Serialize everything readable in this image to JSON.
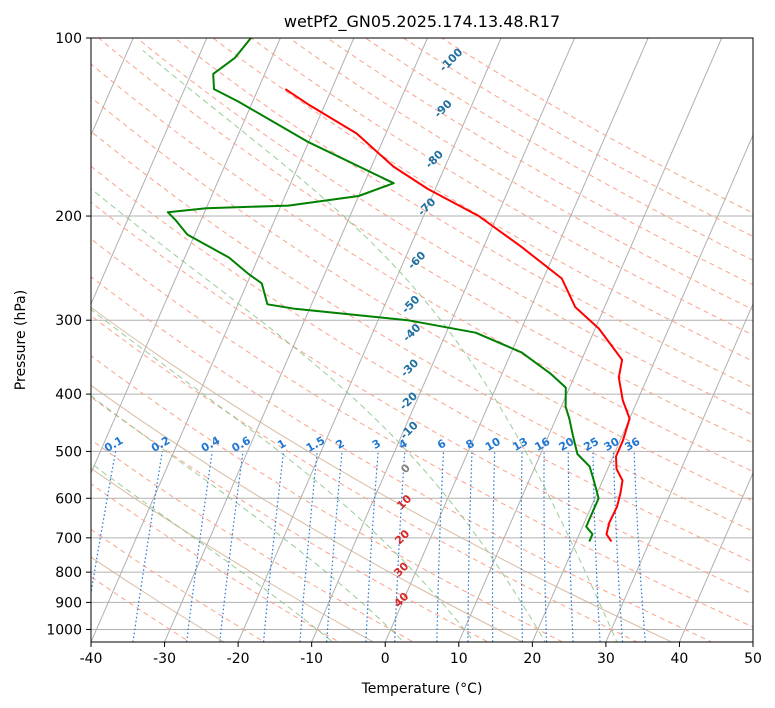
{
  "chart_data": {
    "type": "line",
    "subtype": "skew-t log-p diagram",
    "title": "wetPf2_GN05.2025.174.13.48.R17",
    "xlabel": "Temperature (°C)",
    "ylabel": "Pressure (hPa)",
    "xlim": [
      -40,
      50
    ],
    "ylim": [
      1050,
      100
    ],
    "y_scale": "log",
    "skew_deg_per_decade": 35,
    "grid": true,
    "x_ticks": [
      "-40",
      "-30",
      "-20",
      "-10",
      "0",
      "10",
      "20",
      "30",
      "40",
      "50"
    ],
    "x_tick_values": [
      -40,
      -30,
      -20,
      -10,
      0,
      10,
      20,
      30,
      40,
      50
    ],
    "y_ticks": [
      "100",
      "200",
      "300",
      "400",
      "500",
      "600",
      "700",
      "800",
      "900",
      "1000"
    ],
    "y_tick_values": [
      100,
      200,
      300,
      400,
      500,
      600,
      700,
      800,
      900,
      1000
    ],
    "isotherms": [
      -120,
      -110,
      -100,
      -90,
      -80,
      -70,
      -60,
      -50,
      -40,
      -30,
      -20,
      -10,
      0,
      10,
      20,
      30,
      40,
      50,
      60,
      70,
      80,
      90,
      100,
      110
    ],
    "dry_adiabats_theta_c": [
      -30,
      -20,
      -10,
      0,
      10,
      20,
      30,
      40,
      50,
      60,
      70,
      80,
      90,
      100,
      110,
      120,
      130,
      140,
      150,
      160,
      170,
      180,
      190,
      200
    ],
    "moist_adiabats_tw_c": [
      -10,
      0,
      10,
      20,
      30
    ],
    "mixing_ratios": [
      0.1,
      0.2,
      0.4,
      0.6,
      1,
      1.5,
      2,
      3,
      4,
      6,
      8,
      10,
      13,
      16,
      20,
      25,
      30,
      36
    ],
    "mixing_ratio_labels": [
      "0.1",
      "0.2",
      "0.4",
      "0.6",
      "1",
      "1.5",
      "2",
      "3",
      "4",
      "6",
      "8",
      "10",
      "13",
      "16",
      "20",
      "25",
      "30",
      "36"
    ],
    "mixing_ratio_label_pressure": 500,
    "wet_bulb_labels": [
      {
        "text": "-100",
        "p": 110,
        "t": -100
      },
      {
        "text": "-90",
        "p": 133,
        "t": -90
      },
      {
        "text": "-80",
        "p": 162,
        "t": -80
      },
      {
        "text": "-70",
        "p": 195,
        "t": -70
      },
      {
        "text": "-60",
        "p": 240,
        "t": -60
      },
      {
        "text": "-50",
        "p": 285,
        "t": -50
      },
      {
        "text": "-40",
        "p": 318,
        "t": -40
      },
      {
        "text": "-30",
        "p": 365,
        "t": -30
      },
      {
        "text": "-20",
        "p": 415,
        "t": -20
      },
      {
        "text": "-10",
        "p": 465,
        "t": -10
      },
      {
        "text": "0",
        "p": 540,
        "t": 0
      },
      {
        "text": "10",
        "p": 615,
        "t": 10
      },
      {
        "text": "20",
        "p": 705,
        "t": 20
      },
      {
        "text": "30",
        "p": 800,
        "t": 30
      },
      {
        "text": "40",
        "p": 900,
        "t": 40
      }
    ],
    "colors": {
      "temperature": "#ff0000",
      "dewpoint": "#008000",
      "isotherm": "#b0b0b0",
      "isobar": "#b0b0b0",
      "dry_adiabat": "#f9a38b",
      "moist_adiabat": "#7fbf7f",
      "mixing_ratio": "#1f77d4",
      "theta_arc": "#c9a07a",
      "label_cold": "#1f6fa0",
      "label_zero": "#808080",
      "label_warm": "#d62728"
    },
    "series": [
      {
        "role": "temperature",
        "points": [
          {
            "p": 710,
            "t": 24.8
          },
          {
            "p": 690,
            "t": 23.7
          },
          {
            "p": 660,
            "t": 23.4
          },
          {
            "p": 620,
            "t": 23.5
          },
          {
            "p": 590,
            "t": 23.2
          },
          {
            "p": 560,
            "t": 22.7
          },
          {
            "p": 535,
            "t": 21.2
          },
          {
            "p": 510,
            "t": 20.4
          },
          {
            "p": 480,
            "t": 20.4
          },
          {
            "p": 440,
            "t": 20.0
          },
          {
            "p": 410,
            "t": 18.0
          },
          {
            "p": 375,
            "t": 16.1
          },
          {
            "p": 350,
            "t": 15.5
          },
          {
            "p": 310,
            "t": 10.5
          },
          {
            "p": 285,
            "t": 6.0
          },
          {
            "p": 255,
            "t": 2.5
          },
          {
            "p": 225,
            "t": -5.0
          },
          {
            "p": 200,
            "t": -12.5
          },
          {
            "p": 180,
            "t": -21.0
          },
          {
            "p": 165,
            "t": -27.0
          },
          {
            "p": 145,
            "t": -34.0
          },
          {
            "p": 130,
            "t": -42.0
          },
          {
            "p": 122,
            "t": -46.3
          }
        ]
      },
      {
        "role": "dewpoint",
        "points": [
          {
            "p": 710,
            "t": 21.8
          },
          {
            "p": 690,
            "t": 21.8
          },
          {
            "p": 670,
            "t": 20.5
          },
          {
            "p": 630,
            "t": 20.5
          },
          {
            "p": 600,
            "t": 20.5
          },
          {
            "p": 560,
            "t": 18.8
          },
          {
            "p": 530,
            "t": 17.4
          },
          {
            "p": 505,
            "t": 15.0
          },
          {
            "p": 470,
            "t": 13.3
          },
          {
            "p": 440,
            "t": 11.8
          },
          {
            "p": 420,
            "t": 10.6
          },
          {
            "p": 390,
            "t": 9.5
          },
          {
            "p": 370,
            "t": 6.7
          },
          {
            "p": 340,
            "t": 1.4
          },
          {
            "p": 315,
            "t": -6.0
          },
          {
            "p": 300,
            "t": -16.0
          },
          {
            "p": 287,
            "t": -32.0
          },
          {
            "p": 282,
            "t": -36.0
          },
          {
            "p": 260,
            "t": -38.0
          },
          {
            "p": 250,
            "t": -40.5
          },
          {
            "p": 235,
            "t": -44.0
          },
          {
            "p": 215,
            "t": -51.0
          },
          {
            "p": 203,
            "t": -53.5
          },
          {
            "p": 197,
            "t": -55.0
          },
          {
            "p": 194,
            "t": -50.0
          },
          {
            "p": 192,
            "t": -39.0
          },
          {
            "p": 185,
            "t": -30.0
          },
          {
            "p": 176,
            "t": -26.0
          },
          {
            "p": 150,
            "t": -40.0
          },
          {
            "p": 128,
            "t": -52.0
          },
          {
            "p": 122,
            "t": -56.0
          },
          {
            "p": 115,
            "t": -57.0
          },
          {
            "p": 108,
            "t": -55.0
          },
          {
            "p": 100,
            "t": -54.0
          }
        ]
      }
    ]
  }
}
